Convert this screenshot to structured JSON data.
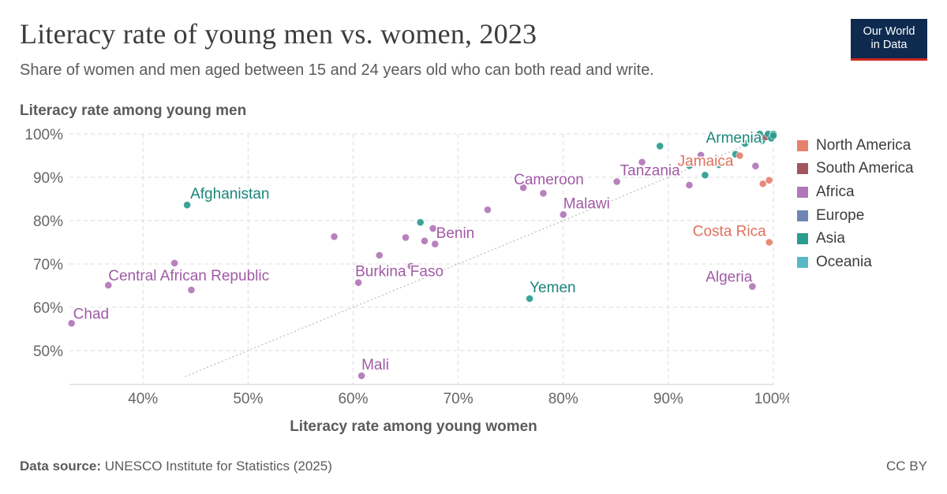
{
  "title": "Literacy rate of young men vs. women, 2023",
  "subtitle": "Share of women and men aged between 15 and 24 years old who can both read and write.",
  "logo": {
    "line1": "Our World",
    "line2": "in Data"
  },
  "footer": {
    "source_label": "Data source:",
    "source_text": " UNESCO Institute for Statistics (2025)",
    "license": "CC BY"
  },
  "legend": [
    {
      "name": "North America",
      "color": "#e6816f"
    },
    {
      "name": "South America",
      "color": "#a2565f"
    },
    {
      "name": "Africa",
      "color": "#b277b8"
    },
    {
      "name": "Europe",
      "color": "#6d86b5"
    },
    {
      "name": "Asia",
      "color": "#2a9d8f"
    },
    {
      "name": "Oceania",
      "color": "#5ab8c6"
    }
  ],
  "chart_data": {
    "type": "scatter",
    "title": "Literacy rate of young men vs. women, 2023",
    "xlabel": "Literacy rate among young women",
    "ylabel": "Literacy rate among young men",
    "xlim": [
      33,
      100
    ],
    "ylim": [
      44,
      100
    ],
    "xticks": [
      {
        "value": 40,
        "label": "40%"
      },
      {
        "value": 50,
        "label": "50%"
      },
      {
        "value": 60,
        "label": "60%"
      },
      {
        "value": 70,
        "label": "70%"
      },
      {
        "value": 80,
        "label": "80%"
      },
      {
        "value": 90,
        "label": "90%"
      },
      {
        "value": 100,
        "label": "100%"
      }
    ],
    "yticks": [
      {
        "value": 50,
        "label": "50%"
      },
      {
        "value": 60,
        "label": "60%"
      },
      {
        "value": 70,
        "label": "70%"
      },
      {
        "value": 80,
        "label": "80%"
      },
      {
        "value": 90,
        "label": "90%"
      },
      {
        "value": 100,
        "label": "100%"
      }
    ],
    "grid": true,
    "parity_line": true,
    "legend_position": "right",
    "points": [
      {
        "x": 33.2,
        "y": 56.3,
        "region": "Africa",
        "label": "Chad"
      },
      {
        "x": 36.7,
        "y": 65.1,
        "region": "Africa",
        "label": "Central African Republic"
      },
      {
        "x": 44.2,
        "y": 83.6,
        "region": "Asia",
        "label": "Afghanistan"
      },
      {
        "x": 43.0,
        "y": 70.2,
        "region": "Africa"
      },
      {
        "x": 44.6,
        "y": 64.0,
        "region": "Africa"
      },
      {
        "x": 58.2,
        "y": 76.3,
        "region": "Africa"
      },
      {
        "x": 60.5,
        "y": 65.7,
        "region": "Africa",
        "label": "Burkina Faso"
      },
      {
        "x": 60.8,
        "y": 44.2,
        "region": "Africa",
        "label": "Mali"
      },
      {
        "x": 62.5,
        "y": 72.0,
        "region": "Africa"
      },
      {
        "x": 65.0,
        "y": 76.1,
        "region": "Africa"
      },
      {
        "x": 65.5,
        "y": 69.5,
        "region": "Africa"
      },
      {
        "x": 66.4,
        "y": 79.6,
        "region": "Asia"
      },
      {
        "x": 66.8,
        "y": 75.3,
        "region": "Africa"
      },
      {
        "x": 67.6,
        "y": 78.2,
        "region": "Africa",
        "label": "Benin"
      },
      {
        "x": 67.8,
        "y": 74.6,
        "region": "Africa"
      },
      {
        "x": 72.8,
        "y": 82.5,
        "region": "Africa"
      },
      {
        "x": 76.2,
        "y": 87.6,
        "region": "Africa",
        "label": "Cameroon"
      },
      {
        "x": 76.8,
        "y": 62.0,
        "region": "Asia",
        "label": "Yemen"
      },
      {
        "x": 78.1,
        "y": 86.3,
        "region": "Africa"
      },
      {
        "x": 80.0,
        "y": 81.4,
        "region": "Africa",
        "label": "Malawi"
      },
      {
        "x": 85.1,
        "y": 89.0,
        "region": "Africa",
        "label": "Tanzania"
      },
      {
        "x": 87.5,
        "y": 93.5,
        "region": "Africa"
      },
      {
        "x": 89.2,
        "y": 97.2,
        "region": "Asia"
      },
      {
        "x": 92.0,
        "y": 88.2,
        "region": "Africa"
      },
      {
        "x": 92.0,
        "y": 92.7,
        "region": "Asia"
      },
      {
        "x": 93.1,
        "y": 95.1,
        "region": "Africa"
      },
      {
        "x": 93.5,
        "y": 90.5,
        "region": "Asia"
      },
      {
        "x": 94.5,
        "y": 93.3,
        "region": "Oceania"
      },
      {
        "x": 94.8,
        "y": 92.9,
        "region": "Asia"
      },
      {
        "x": 96.4,
        "y": 95.3,
        "region": "Asia"
      },
      {
        "x": 96.8,
        "y": 95.0,
        "region": "North America",
        "label": "Jamaica"
      },
      {
        "x": 97.3,
        "y": 97.8,
        "region": "Asia"
      },
      {
        "x": 98.3,
        "y": 92.6,
        "region": "Africa"
      },
      {
        "x": 98.0,
        "y": 64.8,
        "region": "Africa",
        "label": "Algeria"
      },
      {
        "x": 98.0,
        "y": 99.1,
        "region": "Asia"
      },
      {
        "x": 98.7,
        "y": 100.0,
        "region": "Asia"
      },
      {
        "x": 98.9,
        "y": 98.4,
        "region": "Asia",
        "label": "Armenia"
      },
      {
        "x": 99.0,
        "y": 88.5,
        "region": "North America"
      },
      {
        "x": 99.3,
        "y": 99.3,
        "region": "South America"
      },
      {
        "x": 99.5,
        "y": 100.0,
        "region": "Asia"
      },
      {
        "x": 99.6,
        "y": 89.3,
        "region": "North America"
      },
      {
        "x": 99.6,
        "y": 75.0,
        "region": "North America",
        "label": "Costa Rica"
      },
      {
        "x": 99.8,
        "y": 99.0,
        "region": "Asia"
      },
      {
        "x": 100.0,
        "y": 100.0,
        "region": "Asia"
      },
      {
        "x": 100.0,
        "y": 99.6,
        "region": "Asia"
      }
    ]
  }
}
